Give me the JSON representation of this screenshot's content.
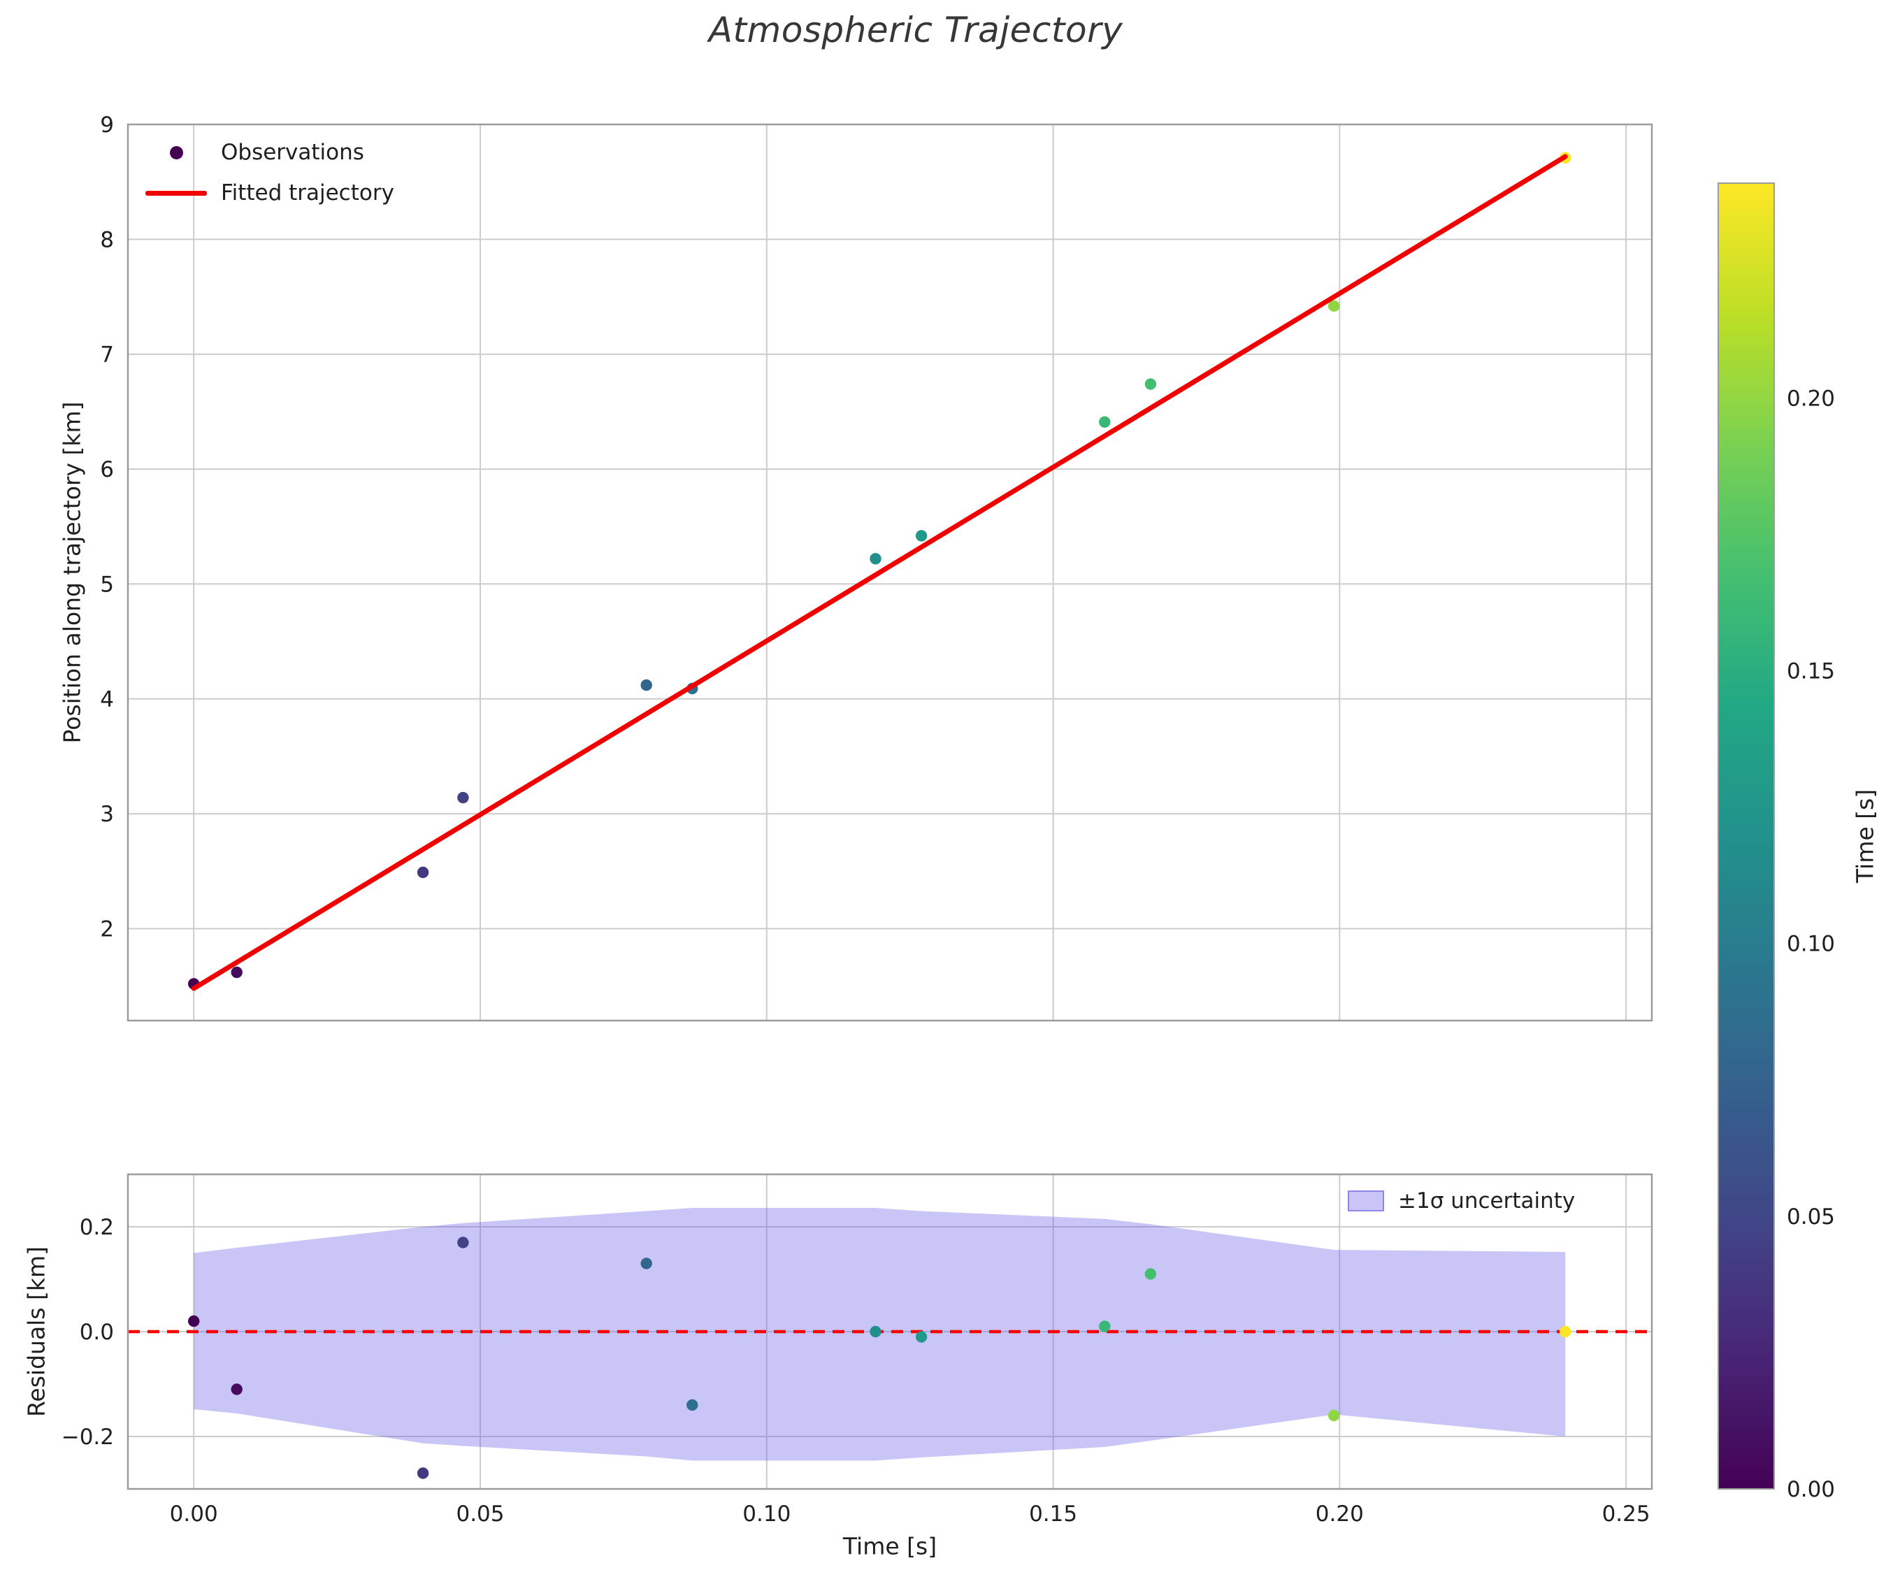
{
  "title": "Atmospheric Trajectory",
  "colors": {
    "fit_line": "#f00000",
    "zero_line": "#ff0000",
    "band_fill": "rgba(105,98,232,0.36)",
    "band_edge": "#8d87ea",
    "legend_marker": "#440154",
    "grid": "#cccccc",
    "frame": "#9c9c9c",
    "text": "#1f1f1f",
    "title_color": "#373737"
  },
  "legend_main": {
    "observations_label": "Observations",
    "fit_label": "Fitted trajectory"
  },
  "legend_residuals": {
    "band_label": "±1σ uncertainty"
  },
  "colorbar": {
    "label": "Time [s]",
    "colormap": "viridis",
    "vmin": 0.0,
    "vmax": 0.2394,
    "tick_values": [
      0.0,
      0.05,
      0.1,
      0.15,
      0.2
    ],
    "tick_labels": [
      "0.00",
      "0.05",
      "0.10",
      "0.15",
      "0.20"
    ]
  },
  "chart_data": [
    {
      "type": "scatter",
      "name": "trajectory-panel",
      "xlabel": "",
      "ylabel": "Position along trajectory [km]",
      "xlim": [
        -0.0115,
        0.2545
      ],
      "ylim": [
        1.2,
        9.0
      ],
      "xticks": [
        0.0,
        0.05,
        0.1,
        0.15,
        0.2,
        0.25
      ],
      "yticks": [
        2,
        3,
        4,
        5,
        6,
        7,
        8,
        9
      ],
      "ytick_labels": [
        "2",
        "3",
        "4",
        "5",
        "6",
        "7",
        "8",
        "9"
      ],
      "grid": true,
      "legend_position": "upper left",
      "series": [
        {
          "name": "Observations",
          "type": "scatter",
          "color_by": "time",
          "x": [
            0.0,
            0.0075,
            0.04,
            0.047,
            0.079,
            0.087,
            0.119,
            0.127,
            0.159,
            0.167,
            0.199,
            0.2394
          ],
          "y": [
            1.52,
            1.62,
            2.49,
            3.14,
            4.12,
            4.09,
            5.22,
            5.42,
            6.41,
            6.74,
            7.42,
            8.71
          ]
        },
        {
          "name": "Fitted trajectory",
          "type": "line",
          "x": [
            0.0,
            0.2394
          ],
          "y": [
            1.48,
            8.72
          ]
        }
      ]
    },
    {
      "type": "scatter",
      "name": "residuals-panel",
      "xlabel": "Time [s]",
      "ylabel": "Residuals [km]",
      "xlim": [
        -0.0115,
        0.2545
      ],
      "ylim": [
        -0.3,
        0.3
      ],
      "xticks": [
        0.0,
        0.05,
        0.1,
        0.15,
        0.2,
        0.25
      ],
      "xtick_labels": [
        "0.00",
        "0.05",
        "0.10",
        "0.15",
        "0.20",
        "0.25"
      ],
      "yticks": [
        -0.2,
        0.0,
        0.2
      ],
      "ytick_labels": [
        "−0.2",
        "0.0",
        "0.2"
      ],
      "grid": true,
      "zero_line": 0.0,
      "band": {
        "label": "±1σ uncertainty",
        "x": [
          0.0,
          0.0075,
          0.04,
          0.047,
          0.079,
          0.087,
          0.119,
          0.127,
          0.159,
          0.167,
          0.199,
          0.2394
        ],
        "upper": [
          0.15,
          0.16,
          0.2,
          0.207,
          0.23,
          0.236,
          0.236,
          0.23,
          0.215,
          0.205,
          0.156,
          0.152
        ],
        "lower": [
          -0.148,
          -0.156,
          -0.213,
          -0.218,
          -0.238,
          -0.246,
          -0.246,
          -0.24,
          -0.22,
          -0.208,
          -0.158,
          -0.2
        ]
      },
      "series": [
        {
          "name": "Residuals",
          "type": "scatter",
          "color_by": "time",
          "x": [
            0.0,
            0.0075,
            0.04,
            0.047,
            0.079,
            0.087,
            0.119,
            0.127,
            0.159,
            0.167,
            0.199,
            0.2394
          ],
          "y": [
            0.02,
            -0.11,
            -0.27,
            0.17,
            0.13,
            -0.14,
            0.0,
            -0.01,
            0.01,
            0.11,
            -0.16,
            0.0
          ]
        }
      ]
    }
  ]
}
